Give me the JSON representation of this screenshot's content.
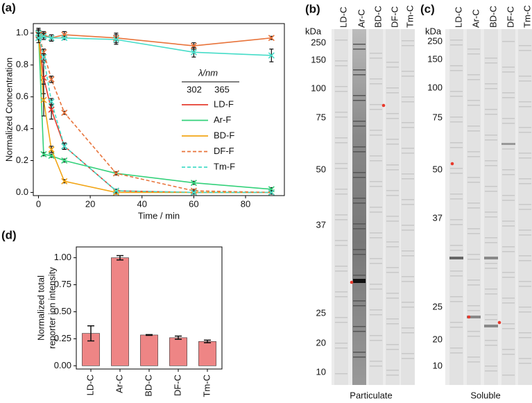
{
  "chart_data": [
    {
      "type": "line",
      "label": "(a)",
      "x_label": "Time / min",
      "y_label": "Normalized Concentration",
      "x": [
        0,
        2,
        5,
        10,
        30,
        60,
        90
      ],
      "xlim": [
        -2,
        95
      ],
      "xticks": [
        0,
        20,
        40,
        60,
        80
      ],
      "ylim": [
        -0.02,
        1.06
      ],
      "yticks": [
        {
          "value": 0,
          "label": "0.0"
        },
        0.2,
        0.4,
        0.6,
        0.8,
        {
          "value": 1,
          "label": "1.0"
        }
      ],
      "legend": {
        "title": "λ/nm",
        "columns": [
          "302",
          "365"
        ]
      },
      "series": [
        {
          "name": "LD-F",
          "color": "#e63b2e",
          "lines": [
            {
              "dash": false,
              "values": [
                1.0,
                0.72,
                0.52,
                0.29,
                0.01,
                0.0,
                0.0
              ],
              "errors": [
                0.03,
                0.1,
                0.06,
                0.02,
                0.01,
                0.01,
                0.01
              ]
            }
          ]
        },
        {
          "name": "Ar-F",
          "color": "#33d17a",
          "lines": [
            {
              "dash": false,
              "values": [
                1.0,
                0.24,
                0.23,
                0.2,
                0.12,
                0.06,
                0.02
              ],
              "errors": [
                0.02,
                0.01,
                0.01,
                0.01,
                0.01,
                0.01,
                0.01
              ]
            }
          ]
        },
        {
          "name": "BD-F",
          "color": "#f2a516",
          "lines": [
            {
              "dash": false,
              "values": [
                1.0,
                0.58,
                0.27,
                0.07,
                0.0,
                0.0,
                0.0
              ],
              "errors": [
                0.03,
                0.1,
                0.02,
                0.01,
                0.01,
                0.01,
                0.01
              ]
            }
          ]
        },
        {
          "name": "DF-F",
          "color": "#e8733a",
          "lines": [
            {
              "dash": true,
              "values": [
                1.0,
                0.88,
                0.71,
                0.5,
                0.12,
                0.01,
                0.0
              ],
              "errors": [
                0.02,
                0.02,
                0.02,
                0.01,
                0.01,
                0.01,
                0.01
              ]
            },
            {
              "dash": false,
              "values": [
                0.99,
                0.99,
                0.97,
                0.99,
                0.97,
                0.92,
                0.97
              ],
              "errors": [
                0.03,
                0.02,
                0.02,
                0.02,
                0.03,
                0.02,
                0.01
              ]
            }
          ]
        },
        {
          "name": "Tm-F",
          "color": "#45dcc8",
          "lines": [
            {
              "dash": true,
              "values": [
                1.0,
                0.85,
                0.57,
                0.29,
                0.01,
                0.0,
                0.0
              ],
              "errors": [
                0.02,
                0.02,
                0.02,
                0.02,
                0.01,
                0.01,
                0.01
              ]
            },
            {
              "dash": false,
              "values": [
                0.97,
                0.98,
                0.97,
                0.97,
                0.96,
                0.88,
                0.86
              ],
              "errors": [
                0.03,
                0.02,
                0.02,
                0.01,
                0.03,
                0.03,
                0.04
              ]
            }
          ]
        }
      ]
    },
    {
      "type": "bar",
      "label": "(d)",
      "y_label": [
        "Normalized total",
        "reporter ion intensity"
      ],
      "categories": [
        "LD-C",
        "Ar-C",
        "BD-C",
        "DF-C",
        "Tm-C"
      ],
      "values": [
        0.3,
        1.0,
        0.285,
        0.26,
        0.225
      ],
      "errors": [
        0.07,
        0.02,
        0.004,
        0.015,
        0.012
      ],
      "color": "#ee8585",
      "ylim": [
        -0.03,
        1.1
      ],
      "yticks": [
        {
          "value": 0,
          "label": "0.00"
        },
        0.25,
        {
          "value": 0.5,
          "label": "0.50"
        },
        0.75,
        {
          "value": 1,
          "label": "1.00"
        }
      ]
    }
  ],
  "gels": [
    {
      "label": "(b)",
      "unit": "kDa",
      "lanes": [
        "LD-C",
        "Ar-C",
        "BD-C",
        "DF-C",
        "Tm-C"
      ],
      "markers": [
        "250",
        "150",
        "100",
        "75",
        "50",
        "37",
        "25",
        "20",
        "10"
      ],
      "caption": "Particulate"
    },
    {
      "label": "(c)",
      "unit": "kDa",
      "lanes": [
        "LD-C",
        "Ar-C",
        "BD-C",
        "DF-C",
        "Tm-C"
      ],
      "markers": [
        "250",
        "150",
        "100",
        "75",
        "50",
        "37",
        "25",
        "20",
        "10"
      ],
      "caption": "Soluble"
    }
  ]
}
